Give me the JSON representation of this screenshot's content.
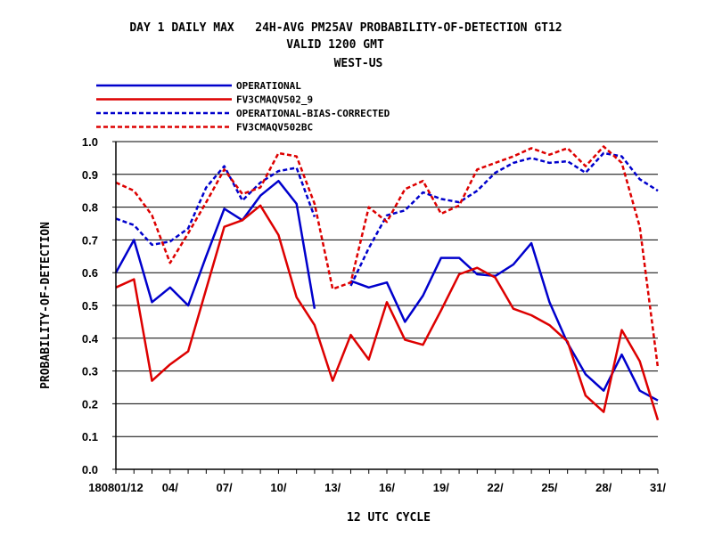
{
  "chart_data": {
    "type": "line",
    "title": "DAY 1 DAILY MAX   24H-AVG PM25AV PROBABILITY-OF-DETECTION GT12",
    "subtitle_1": "VALID 1200 GMT",
    "subtitle_2": "WEST-US",
    "xlabel": "12 UTC CYCLE",
    "ylabel": "PROBABILITY-OF-DETECTION",
    "ylim": [
      0.0,
      1.0
    ],
    "xlim": [
      1,
      31
    ],
    "y_ticks": [
      "0.0",
      "0.1",
      "0.2",
      "0.3",
      "0.4",
      "0.5",
      "0.6",
      "0.7",
      "0.8",
      "0.9",
      "1.0"
    ],
    "x_tick_labels": [
      {
        "x": 1,
        "label": "180801/12"
      },
      {
        "x": 4,
        "label": "04/"
      },
      {
        "x": 7,
        "label": "07/"
      },
      {
        "x": 10,
        "label": "10/"
      },
      {
        "x": 13,
        "label": "13/"
      },
      {
        "x": 16,
        "label": "16/"
      },
      {
        "x": 19,
        "label": "19/"
      },
      {
        "x": 22,
        "label": "22/"
      },
      {
        "x": 25,
        "label": "25/"
      },
      {
        "x": 28,
        "label": "28/"
      },
      {
        "x": 31,
        "label": "31/"
      }
    ],
    "grid": "horizontal",
    "legend_position": "top-left",
    "series": [
      {
        "name": "OPERATIONAL",
        "color": "#0000cc",
        "dash": "solid",
        "points": [
          [
            1,
            0.6
          ],
          [
            2,
            0.7
          ],
          [
            3,
            0.51
          ],
          [
            4,
            0.555
          ],
          [
            5,
            0.5
          ],
          [
            6,
            0.65
          ],
          [
            7,
            0.795
          ],
          [
            8,
            0.76
          ],
          [
            9,
            0.835
          ],
          [
            10,
            0.88
          ],
          [
            11,
            0.81
          ],
          [
            12,
            0.49
          ],
          [
            14,
            0.575
          ],
          [
            15,
            0.555
          ],
          [
            16,
            0.57
          ],
          [
            17,
            0.45
          ],
          [
            18,
            0.53
          ],
          [
            19,
            0.645
          ],
          [
            20,
            0.645
          ],
          [
            21,
            0.595
          ],
          [
            22,
            0.59
          ],
          [
            23,
            0.625
          ],
          [
            24,
            0.69
          ],
          [
            25,
            0.51
          ],
          [
            26,
            0.385
          ],
          [
            27,
            0.29
          ],
          [
            28,
            0.24
          ],
          [
            29,
            0.35
          ],
          [
            30,
            0.24
          ],
          [
            31,
            0.21
          ]
        ]
      },
      {
        "name": "FV3CMAQV502_9",
        "color": "#dd0000",
        "dash": "solid",
        "points": [
          [
            1,
            0.555
          ],
          [
            2,
            0.58
          ],
          [
            3,
            0.27
          ],
          [
            4,
            0.32
          ],
          [
            5,
            0.36
          ],
          [
            6,
            0.55
          ],
          [
            7,
            0.74
          ],
          [
            8,
            0.76
          ],
          [
            9,
            0.805
          ],
          [
            10,
            0.715
          ],
          [
            11,
            0.525
          ],
          [
            12,
            0.44
          ],
          [
            13,
            0.27
          ],
          [
            14,
            0.41
          ],
          [
            15,
            0.335
          ],
          [
            16,
            0.51
          ],
          [
            17,
            0.395
          ],
          [
            18,
            0.38
          ],
          [
            19,
            0.485
          ],
          [
            20,
            0.595
          ],
          [
            21,
            0.615
          ],
          [
            22,
            0.585
          ],
          [
            23,
            0.49
          ],
          [
            24,
            0.47
          ],
          [
            25,
            0.44
          ],
          [
            26,
            0.39
          ],
          [
            27,
            0.225
          ],
          [
            28,
            0.175
          ],
          [
            29,
            0.425
          ],
          [
            30,
            0.33
          ],
          [
            31,
            0.15
          ]
        ]
      },
      {
        "name": "OPERATIONAL-BIAS-CORRECTED",
        "color": "#0000cc",
        "dash": "dashed",
        "points": [
          [
            1,
            0.765
          ],
          [
            2,
            0.745
          ],
          [
            3,
            0.685
          ],
          [
            4,
            0.695
          ],
          [
            5,
            0.735
          ],
          [
            6,
            0.86
          ],
          [
            7,
            0.925
          ],
          [
            8,
            0.82
          ],
          [
            9,
            0.875
          ],
          [
            10,
            0.91
          ],
          [
            11,
            0.92
          ],
          [
            12,
            0.77
          ],
          [
            14,
            0.56
          ],
          [
            15,
            0.675
          ],
          [
            16,
            0.775
          ],
          [
            17,
            0.79
          ],
          [
            18,
            0.845
          ],
          [
            19,
            0.825
          ],
          [
            20,
            0.815
          ],
          [
            21,
            0.85
          ],
          [
            22,
            0.905
          ],
          [
            23,
            0.935
          ],
          [
            24,
            0.95
          ],
          [
            25,
            0.935
          ],
          [
            26,
            0.94
          ],
          [
            27,
            0.905
          ],
          [
            28,
            0.965
          ],
          [
            29,
            0.955
          ],
          [
            30,
            0.885
          ],
          [
            31,
            0.85
          ]
        ]
      },
      {
        "name": "FV3CMAQV502BC",
        "color": "#dd0000",
        "dash": "dashed",
        "points": [
          [
            1,
            0.875
          ],
          [
            2,
            0.85
          ],
          [
            3,
            0.775
          ],
          [
            4,
            0.63
          ],
          [
            5,
            0.72
          ],
          [
            6,
            0.815
          ],
          [
            7,
            0.915
          ],
          [
            8,
            0.84
          ],
          [
            9,
            0.86
          ],
          [
            10,
            0.965
          ],
          [
            11,
            0.955
          ],
          [
            12,
            0.81
          ],
          [
            13,
            0.55
          ],
          [
            14,
            0.57
          ],
          [
            15,
            0.8
          ],
          [
            16,
            0.755
          ],
          [
            17,
            0.855
          ],
          [
            18,
            0.88
          ],
          [
            19,
            0.78
          ],
          [
            20,
            0.805
          ],
          [
            21,
            0.915
          ],
          [
            22,
            0.935
          ],
          [
            23,
            0.955
          ],
          [
            24,
            0.98
          ],
          [
            25,
            0.96
          ],
          [
            26,
            0.98
          ],
          [
            27,
            0.925
          ],
          [
            28,
            0.985
          ],
          [
            29,
            0.935
          ],
          [
            30,
            0.74
          ],
          [
            31,
            0.31
          ]
        ]
      }
    ]
  }
}
